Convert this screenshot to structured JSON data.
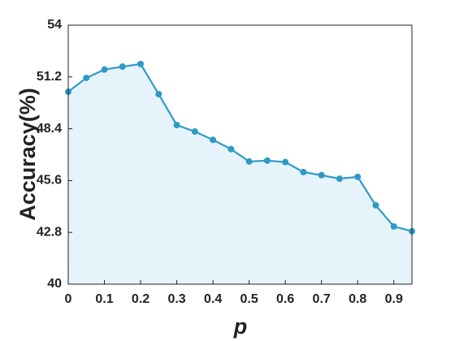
{
  "chart_data": {
    "type": "area_line",
    "x_label": "p",
    "y_label": "Accuracy(%)",
    "x": [
      0,
      0.05,
      0.1,
      0.15,
      0.2,
      0.25,
      0.3,
      0.35,
      0.4,
      0.45,
      0.5,
      0.55,
      0.6,
      0.65,
      0.7,
      0.75,
      0.8,
      0.85,
      0.9,
      0.95
    ],
    "series": [
      {
        "color": "#2f9ac6",
        "fill": "#e6f3fa",
        "values": [
          50.4,
          51.15,
          51.6,
          51.76,
          51.9,
          50.27,
          48.6,
          48.25,
          47.8,
          47.3,
          46.63,
          46.68,
          46.6,
          46.06,
          45.89,
          45.7,
          45.8,
          44.26,
          43.12,
          42.86
        ]
      }
    ],
    "xlim": [
      0,
      0.95
    ],
    "xticks": [
      0,
      0.1,
      0.2,
      0.3,
      0.4,
      0.5,
      0.6,
      0.7,
      0.8,
      0.9
    ],
    "ylim": [
      40,
      54
    ],
    "yticks": [
      40,
      42.8,
      45.6,
      48.4,
      51.2,
      54
    ]
  }
}
